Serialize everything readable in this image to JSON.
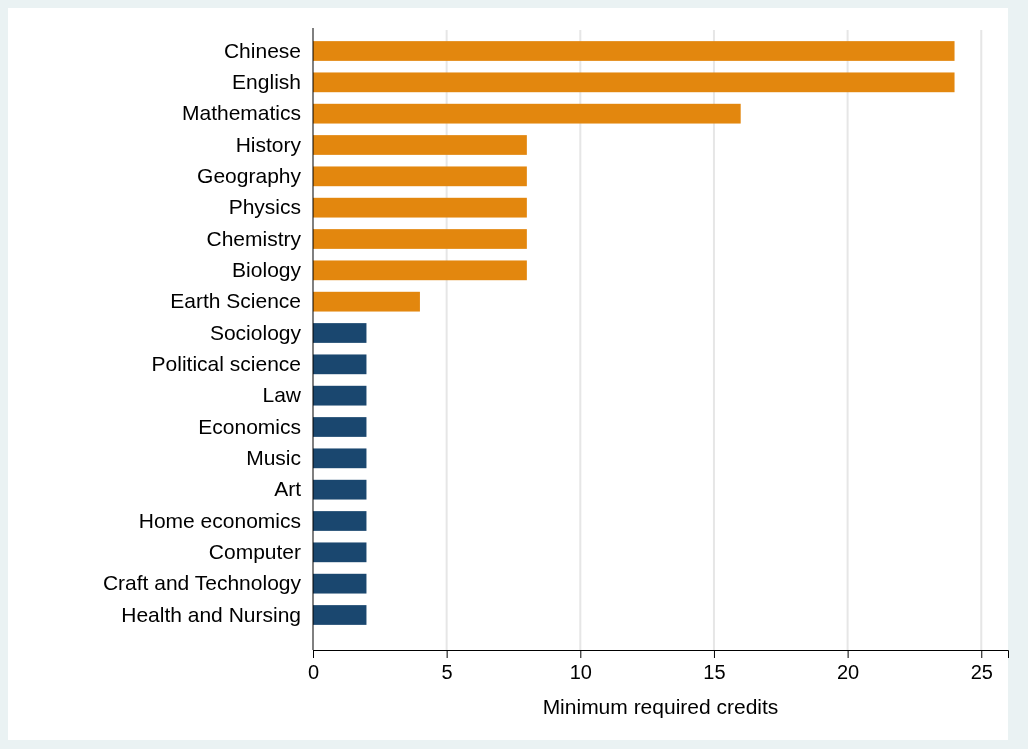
{
  "chart_data": {
    "type": "bar",
    "orientation": "horizontal",
    "xlabel": "Minimum required credits",
    "categories": [
      "Chinese",
      "English",
      "Mathematics",
      "History",
      "Geography",
      "Physics",
      "Chemistry",
      "Biology",
      "Earth Science",
      "Sociology",
      "Political science",
      "Law",
      "Economics",
      "Music",
      "Art",
      "Home economics",
      "Computer",
      "Craft and Technology",
      "Health and Nursing"
    ],
    "values": [
      24,
      24,
      16,
      8,
      8,
      8,
      8,
      8,
      4,
      2,
      2,
      2,
      2,
      2,
      2,
      2,
      2,
      2,
      2
    ],
    "colors": [
      "#e3870e",
      "#e3870e",
      "#e3870e",
      "#e3870e",
      "#e3870e",
      "#e3870e",
      "#e3870e",
      "#e3870e",
      "#e3870e",
      "#1a476f",
      "#1a476f",
      "#1a476f",
      "#1a476f",
      "#1a476f",
      "#1a476f",
      "#1a476f",
      "#1a476f",
      "#1a476f",
      "#1a476f"
    ],
    "xlim": [
      0,
      26
    ],
    "xticks": [
      0,
      5,
      10,
      15,
      20,
      25
    ],
    "grid": "x"
  }
}
